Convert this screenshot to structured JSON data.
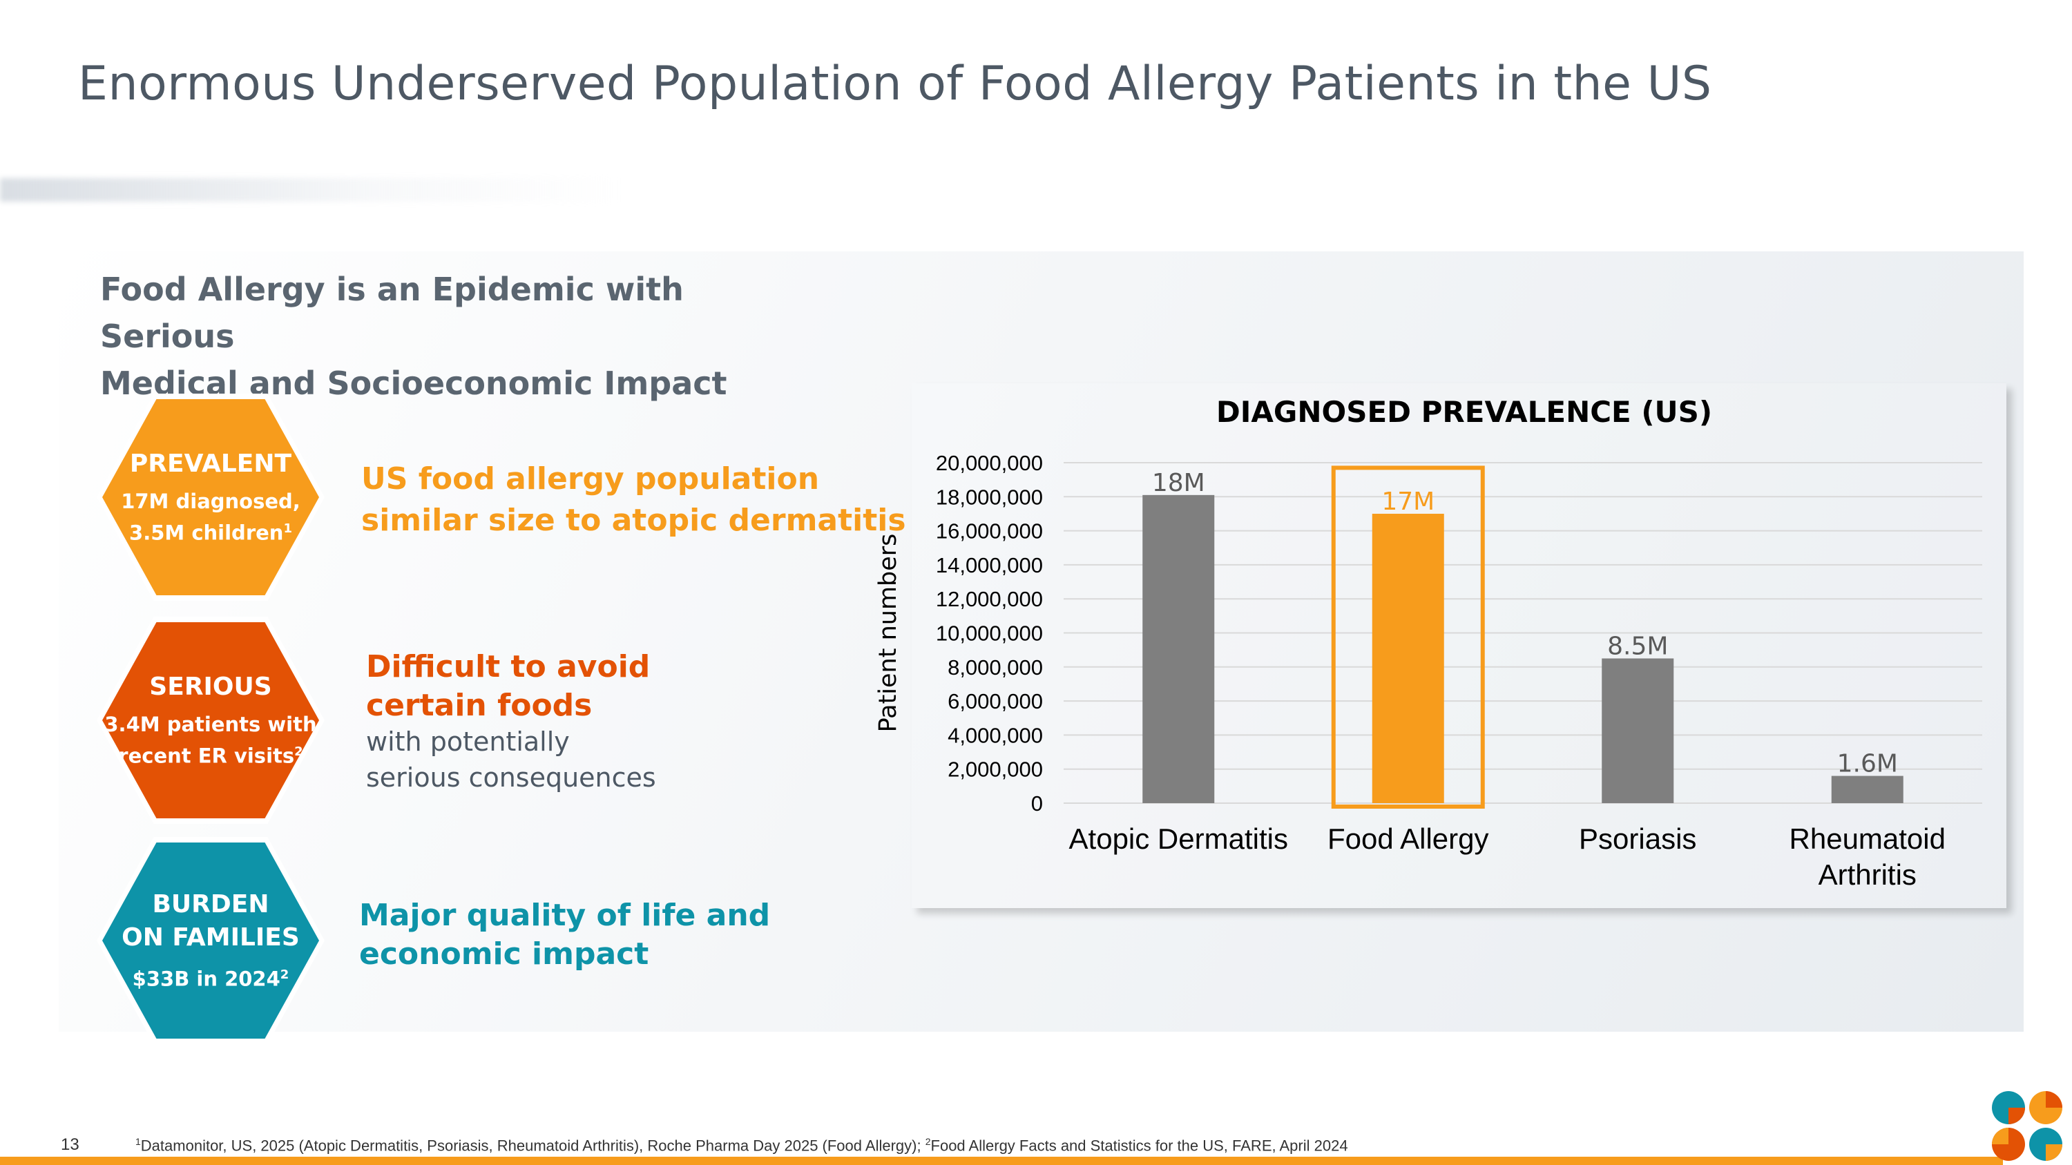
{
  "slide": {
    "title": "Enormous Underserved Population of Food Allergy Patients in the US",
    "subtitle_line1": "Food Allergy is an Epidemic with Serious",
    "subtitle_line2": "Medical and Socioeconomic Impact",
    "page_number": "13"
  },
  "hexagons": [
    {
      "title": "PREVALENT",
      "sub_line1": "17M diagnosed,",
      "sub_line2": "3.5M children",
      "sup": "1",
      "color": "#f79c1c"
    },
    {
      "title": "SERIOUS",
      "sub_line1": "3.4M patients with",
      "sub_line2": "recent ER visits",
      "sup": "2",
      "color": "#e35205"
    },
    {
      "title_line1": "BURDEN",
      "title_line2": "ON FAMILIES",
      "sub_line1": "$33B in 2024",
      "sup": "2",
      "color": "#0e93a8"
    }
  ],
  "descriptions": {
    "prevalent_line1": "US food allergy population",
    "prevalent_line2": "similar size to atopic dermatitis",
    "serious_bold_line1": "Difficult to avoid",
    "serious_bold_line2": "certain foods",
    "serious_plain_line1": "with potentially",
    "serious_plain_line2": "serious consequences",
    "burden_line1": "Major quality of life and",
    "burden_line2": "economic impact"
  },
  "chart_data": {
    "type": "bar",
    "title": "DIAGNOSED PREVALENCE (US)",
    "ylabel": "Patient numbers",
    "xlabel": "",
    "ylim": [
      0,
      20000000
    ],
    "yticks": [
      "0",
      "2,000,000",
      "4,000,000",
      "6,000,000",
      "8,000,000",
      "10,000,000",
      "12,000,000",
      "14,000,000",
      "16,000,000",
      "18,000,000",
      "20,000,000"
    ],
    "categories": [
      "Atopic Dermatitis",
      "Food Allergy",
      "Psoriasis",
      "Rheumatoid Arthritis"
    ],
    "category_lines": [
      [
        "Atopic Dermatitis"
      ],
      [
        "Food Allergy"
      ],
      [
        "Psoriasis"
      ],
      [
        "Rheumatoid",
        "Arthritis"
      ]
    ],
    "values": [
      18100000,
      17000000,
      8500000,
      1600000
    ],
    "data_labels": [
      "18M",
      "17M",
      "8.5M",
      "1.6M"
    ],
    "bar_colors": [
      "#7f7f7f",
      "#f79c1c",
      "#7f7f7f",
      "#7f7f7f"
    ],
    "label_colors": [
      "#595959",
      "#f79c1c",
      "#595959",
      "#595959"
    ],
    "highlight_category": "Food Allergy",
    "highlight_color": "#f79c1c",
    "grid": true
  },
  "footnote": {
    "sup1": "1",
    "text1": "Datamonitor, US, 2025 (Atopic Dermatitis, Psoriasis, Rheumatoid Arthritis), Roche Pharma Day 2025 (Food Allergy); ",
    "sup2": "2",
    "text2": "Food Allergy Facts and Statistics for the US, FARE, April 2024"
  },
  "logo": {
    "colors": [
      "#0e93a8",
      "#f79c1c",
      "#e35205"
    ]
  }
}
